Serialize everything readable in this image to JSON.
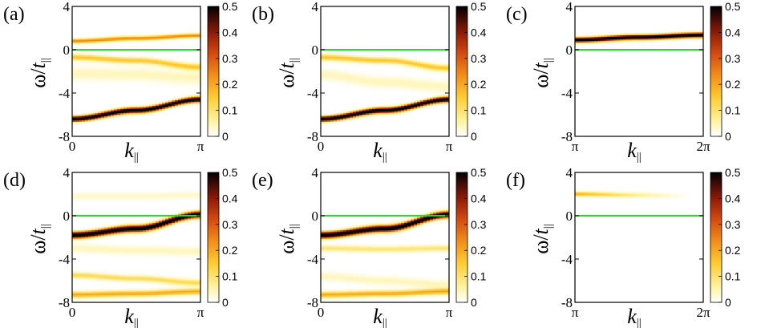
{
  "chart_data": [
    {
      "type": "heatmap",
      "panel_label": "(a)",
      "xlabel": "k",
      "xlabel_sub": "||",
      "ylabel_omega": "ω/",
      "ylabel_t": "t",
      "ylabel_sub": "||",
      "xticks": [
        "0",
        "π"
      ],
      "xlim": [
        0,
        3.14159
      ],
      "yticks": [
        "4",
        "0",
        "-4",
        "-8"
      ],
      "ytick_values": [
        4,
        0,
        -4,
        -8
      ],
      "ylim": [
        -8,
        4
      ],
      "fermi_level": 0,
      "colorbar": {
        "ticks": [
          "0.5",
          "0.4",
          "0.3",
          "0.2",
          "0.1",
          "0"
        ],
        "range": [
          0,
          0.5
        ]
      },
      "bands": [
        {
          "k": [
            0,
            1.57,
            3.14159
          ],
          "omega": [
            -6.4,
            -5.6,
            -4.6
          ],
          "intensity": 0.55,
          "width": 0.25
        },
        {
          "k": [
            0,
            1.57,
            3.14159
          ],
          "omega": [
            0.8,
            1.05,
            1.3
          ],
          "intensity": 0.22,
          "width": 0.2
        },
        {
          "k": [
            0,
            1.57,
            3.14159
          ],
          "omega": [
            -0.7,
            -1.0,
            -1.6
          ],
          "intensity": 0.15,
          "width": 0.3
        },
        {
          "k": [
            0,
            1.57,
            3.14159
          ],
          "omega": [
            -2.2,
            -2.3,
            -2.6
          ],
          "intensity": 0.05,
          "width": 0.6
        }
      ]
    },
    {
      "type": "heatmap",
      "panel_label": "(b)",
      "xlabel": "k",
      "xlabel_sub": "||",
      "ylabel_omega": "ω/",
      "ylabel_t": "t",
      "ylabel_sub": "||",
      "xticks": [
        "0",
        "π"
      ],
      "xlim": [
        0,
        3.14159
      ],
      "yticks": [
        "4",
        "0",
        "-4",
        "-8"
      ],
      "ytick_values": [
        4,
        0,
        -4,
        -8
      ],
      "ylim": [
        -8,
        4
      ],
      "fermi_level": 0,
      "colorbar": {
        "ticks": [
          "0.5",
          "0.4",
          "0.3",
          "0.2",
          "0.1",
          "0"
        ],
        "range": [
          0,
          0.5
        ]
      },
      "bands": [
        {
          "k": [
            0,
            1.57,
            3.14159
          ],
          "omega": [
            -6.4,
            -5.6,
            -4.6
          ],
          "intensity": 0.55,
          "width": 0.25
        },
        {
          "k": [
            0,
            1.57,
            3.14159
          ],
          "omega": [
            -0.7,
            -1.0,
            -1.7
          ],
          "intensity": 0.15,
          "width": 0.3
        },
        {
          "k": [
            0,
            1.57,
            3.14159
          ],
          "omega": [
            -2.3,
            -3.0,
            -3.4
          ],
          "intensity": 0.05,
          "width": 0.5
        }
      ]
    },
    {
      "type": "heatmap",
      "panel_label": "(c)",
      "xlabel": "k",
      "xlabel_sub": "||",
      "ylabel_omega": "ω/",
      "ylabel_t": "t",
      "ylabel_sub": "||",
      "xticks": [
        "π",
        "2π"
      ],
      "xlim": [
        3.14159,
        6.28318
      ],
      "yticks": [
        "4",
        "0",
        "-4",
        "-8"
      ],
      "ytick_values": [
        4,
        0,
        -4,
        -8
      ],
      "ylim": [
        -8,
        4
      ],
      "fermi_level": 0,
      "colorbar": {
        "ticks": [
          "0.5",
          "0.4",
          "0.3",
          "0.2",
          "0.1",
          "0"
        ],
        "range": [
          0,
          0.5
        ]
      },
      "bands": [
        {
          "k": [
            3.14159,
            4.71,
            6.28318
          ],
          "omega": [
            0.9,
            1.15,
            1.35
          ],
          "intensity": 0.55,
          "width": 0.22
        }
      ]
    },
    {
      "type": "heatmap",
      "panel_label": "(d)",
      "xlabel": "k",
      "xlabel_sub": "||",
      "ylabel_omega": "ω/",
      "ylabel_t": "t",
      "ylabel_sub": "||",
      "xticks": [
        "0",
        "π"
      ],
      "xlim": [
        0,
        3.14159
      ],
      "yticks": [
        "4",
        "0",
        "-4",
        "-8"
      ],
      "ytick_values": [
        4,
        0,
        -4,
        -8
      ],
      "ylim": [
        -8,
        4
      ],
      "fermi_level": 0,
      "colorbar": {
        "ticks": [
          "0.5",
          "0.4",
          "0.3",
          "0.2",
          "0.1",
          "0"
        ],
        "range": [
          0,
          0.5
        ]
      },
      "bands": [
        {
          "k": [
            0,
            1.57,
            3.14159
          ],
          "omega": [
            -1.8,
            -1.2,
            0.1
          ],
          "intensity": 0.55,
          "width": 0.3
        },
        {
          "k": [
            0,
            1.57,
            3.14159
          ],
          "omega": [
            -5.5,
            -5.8,
            -6.2
          ],
          "intensity": 0.12,
          "width": 0.3
        },
        {
          "k": [
            0,
            1.57,
            3.14159
          ],
          "omega": [
            -7.3,
            -7.2,
            -7.0
          ],
          "intensity": 0.18,
          "width": 0.3
        },
        {
          "k": [
            0,
            1.57,
            3.14159
          ],
          "omega": [
            -3.0,
            -3.2,
            -3.3
          ],
          "intensity": 0.05,
          "width": 0.4
        },
        {
          "k": [
            0,
            1.57,
            3.14159
          ],
          "omega": [
            1.8,
            1.8,
            1.9
          ],
          "intensity": 0.04,
          "width": 0.3
        }
      ]
    },
    {
      "type": "heatmap",
      "panel_label": "(e)",
      "xlabel": "k",
      "xlabel_sub": "||",
      "ylabel_omega": "ω/",
      "ylabel_t": "t",
      "ylabel_sub": "||",
      "xticks": [
        "0",
        "π"
      ],
      "xlim": [
        0,
        3.14159
      ],
      "yticks": [
        "4",
        "0",
        "-4",
        "-8"
      ],
      "ytick_values": [
        4,
        0,
        -4,
        -8
      ],
      "ylim": [
        -8,
        4
      ],
      "fermi_level": 0,
      "colorbar": {
        "ticks": [
          "0.5",
          "0.4",
          "0.3",
          "0.2",
          "0.1",
          "0"
        ],
        "range": [
          0,
          0.5
        ]
      },
      "bands": [
        {
          "k": [
            0,
            1.57,
            3.14159
          ],
          "omega": [
            -1.8,
            -1.2,
            0.1
          ],
          "intensity": 0.55,
          "width": 0.3
        },
        {
          "k": [
            0,
            1.57,
            3.14159
          ],
          "omega": [
            -3.0,
            -3.1,
            -3.0
          ],
          "intensity": 0.1,
          "width": 0.3
        },
        {
          "k": [
            0,
            1.57,
            3.14159
          ],
          "omega": [
            -5.6,
            -6.0,
            -6.4
          ],
          "intensity": 0.05,
          "width": 0.4
        },
        {
          "k": [
            0,
            1.57,
            3.14159
          ],
          "omega": [
            -7.3,
            -7.2,
            -7.0
          ],
          "intensity": 0.18,
          "width": 0.3
        }
      ]
    },
    {
      "type": "heatmap",
      "panel_label": "(f)",
      "xlabel": "k",
      "xlabel_sub": "||",
      "ylabel_omega": "ω/",
      "ylabel_t": "t",
      "ylabel_sub": "||",
      "xticks": [
        "π",
        "2π"
      ],
      "xlim": [
        3.14159,
        6.28318
      ],
      "yticks": [
        "4",
        "0",
        "-4",
        "-8"
      ],
      "ytick_values": [
        4,
        0,
        -4,
        -8
      ],
      "ylim": [
        -8,
        4
      ],
      "fermi_level": 0,
      "colorbar": {
        "ticks": [
          "0.5",
          "0.4",
          "0.3",
          "0.2",
          "0.1",
          "0"
        ],
        "range": [
          0,
          0.5
        ]
      },
      "bands": [
        {
          "k": [
            3.14159,
            4.71,
            6.28318
          ],
          "omega": [
            2.0,
            1.9,
            1.8
          ],
          "intensity": 0.18,
          "width": 0.22,
          "fade": true
        }
      ]
    }
  ],
  "colors": {
    "fermi_line": "#22dd22",
    "colormap": [
      "#ffffff",
      "#fff2a0",
      "#ffcc33",
      "#f08a18",
      "#d24a10",
      "#8e1b08",
      "#3a0a05",
      "#000000"
    ]
  }
}
